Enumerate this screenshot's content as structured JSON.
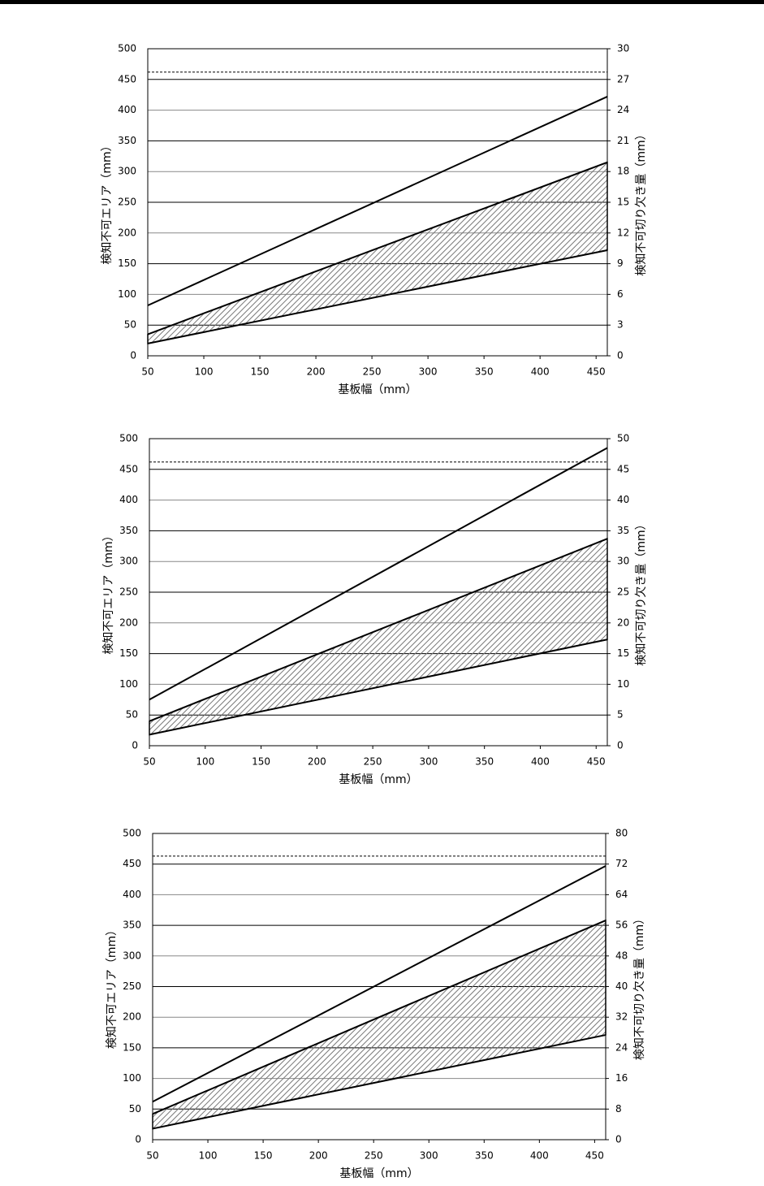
{
  "chart_data": [
    {
      "type": "line",
      "x": [
        50,
        460
      ],
      "xlim": [
        50,
        460
      ],
      "xticks": [
        50,
        100,
        150,
        200,
        250,
        300,
        350,
        400,
        450
      ],
      "ylim": [
        0,
        500
      ],
      "yticks": [
        0,
        50,
        100,
        150,
        200,
        250,
        300,
        350,
        400,
        450,
        500
      ],
      "y2lim": [
        0,
        30
      ],
      "y2ticks": [
        0,
        3,
        6,
        9,
        12,
        15,
        18,
        21,
        24,
        27,
        30
      ],
      "x_label": "基板幅（mm）",
      "y_label": "検知不可エリア（mm）",
      "y2_label": "検知不可切り欠き量（mm）",
      "grid": true,
      "series": [
        {
          "color": "#000000",
          "style": "solid",
          "values": [
            82,
            422
          ]
        },
        {
          "color": "#000000",
          "style": "dashed",
          "values": [
            462,
            462
          ]
        }
      ],
      "band": {
        "color": "#000000",
        "upper": [
          35,
          315
        ],
        "lower": [
          20,
          172
        ]
      }
    },
    {
      "type": "line",
      "x": [
        50,
        460
      ],
      "xlim": [
        50,
        460
      ],
      "xticks": [
        50,
        100,
        150,
        200,
        250,
        300,
        350,
        400,
        450
      ],
      "ylim": [
        0,
        500
      ],
      "yticks": [
        0,
        50,
        100,
        150,
        200,
        250,
        300,
        350,
        400,
        450,
        500
      ],
      "y2lim": [
        0,
        50
      ],
      "y2ticks": [
        0,
        5,
        10,
        15,
        20,
        25,
        30,
        35,
        40,
        45,
        50
      ],
      "x_label": "基板幅（mm）",
      "y_label": "検知不可エリア（mm）",
      "y2_label": "検知不可切り欠き量（mm）",
      "grid": true,
      "series": [
        {
          "color": "#000000",
          "style": "solid",
          "values": [
            75,
            485
          ]
        },
        {
          "color": "#000000",
          "style": "dashed",
          "values": [
            462,
            462
          ]
        }
      ],
      "band": {
        "color": "#000000",
        "upper": [
          40,
          337
        ],
        "lower": [
          18,
          173
        ]
      }
    },
    {
      "type": "line",
      "x": [
        50,
        460
      ],
      "xlim": [
        50,
        460
      ],
      "xticks": [
        50,
        100,
        150,
        200,
        250,
        300,
        350,
        400,
        450
      ],
      "ylim": [
        0,
        500
      ],
      "yticks": [
        0,
        50,
        100,
        150,
        200,
        250,
        300,
        350,
        400,
        450,
        500
      ],
      "y2lim": [
        0,
        80
      ],
      "y2ticks": [
        0,
        8,
        16,
        24,
        32,
        40,
        48,
        56,
        64,
        72,
        80
      ],
      "x_label": "基板幅（mm）",
      "y_label": "検知不可エリア（mm）",
      "y2_label": "検知不可切り欠き量（mm）",
      "grid": true,
      "series": [
        {
          "color": "#000000",
          "style": "solid",
          "values": [
            62,
            447
          ]
        },
        {
          "color": "#000000",
          "style": "dashed",
          "values": [
            463,
            463
          ]
        }
      ],
      "band": {
        "color": "#000000",
        "upper": [
          42,
          358
        ],
        "lower": [
          18,
          171
        ]
      }
    }
  ]
}
